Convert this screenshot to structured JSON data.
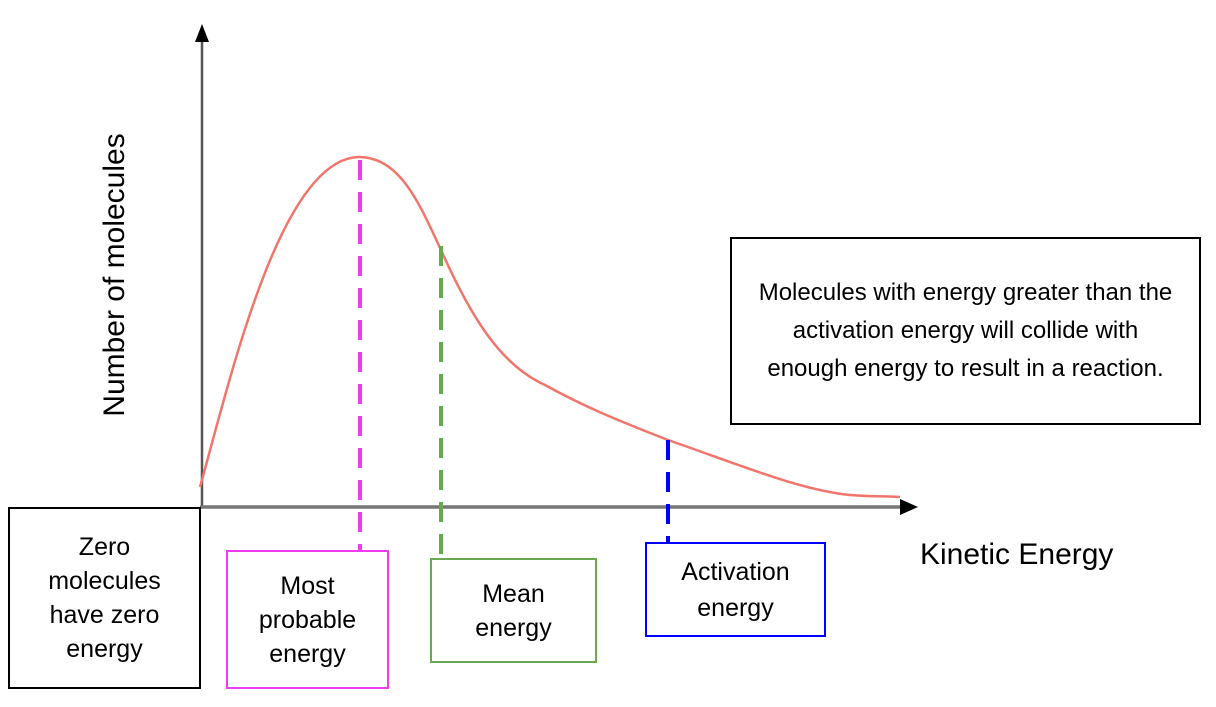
{
  "axes": {
    "y_label": "Number of molecules",
    "x_label": "Kinetic Energy"
  },
  "annotations": {
    "zero": "Zero molecules have zero energy",
    "most_probable": "Most probable energy",
    "mean": "Mean energy",
    "activation": "Activation energy",
    "note": "Molecules with energy greater than the activation energy will collide with enough energy to result in a reaction."
  },
  "colors": {
    "curve": "#f0756b",
    "most_probable": "#f03cf0",
    "mean": "#6aa84f",
    "activation": "#0000ff",
    "axis": "#555555"
  }
}
